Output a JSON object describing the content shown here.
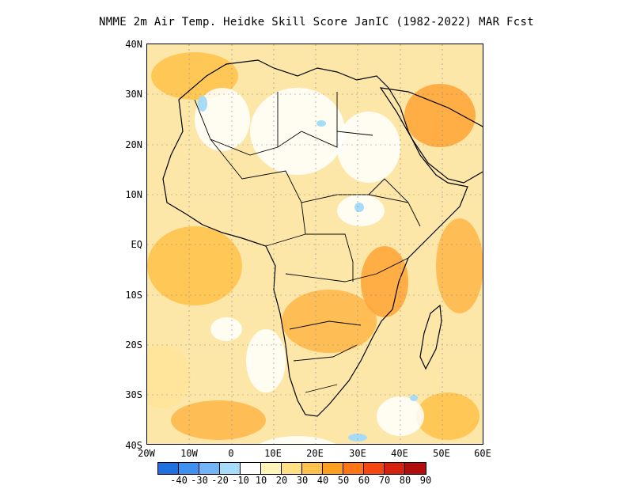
{
  "title": "NMME  2m Air Temp. Heidke Skill Score JanIC (1982-2022) MAR Fcst",
  "lat_ticks": [
    "40N",
    "30N",
    "20N",
    "10N",
    "EQ",
    "10S",
    "20S",
    "30S",
    "40S"
  ],
  "lon_ticks": [
    "20W",
    "10W",
    "0",
    "10E",
    "20E",
    "30E",
    "40E",
    "50E",
    "60E"
  ],
  "colorbar": {
    "labels": [
      "-40",
      "-30",
      "-20",
      "-10",
      "10",
      "20",
      "30",
      "40",
      "50",
      "60",
      "70",
      "80",
      "90"
    ],
    "colors": [
      "#1f6fe0",
      "#3d8ff0",
      "#72b4f5",
      "#a6dcf8",
      "#ffffff",
      "#fff6b8",
      "#ffe082",
      "#ffc34d",
      "#ff9f1f",
      "#ff7414",
      "#f5470f",
      "#d7200d",
      "#b30c0c"
    ]
  },
  "colors": {
    "land_base": "#fdd98a",
    "ocean_base": "#fde7a8",
    "strong": "#ffb84d",
    "weak": "#ffffff",
    "negative": "#a6dcf8",
    "border": "#000000"
  }
}
